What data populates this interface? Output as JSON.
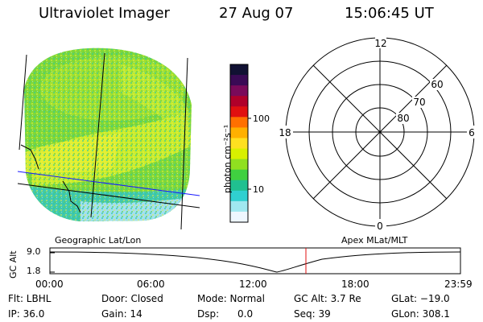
{
  "header": {
    "instrument": "Ultraviolet Imager",
    "date": "27 Aug 07",
    "time": "15:06:45 UT"
  },
  "colorbar": {
    "unit_label": "photon cm⁻²s⁻¹",
    "ticks": [
      "100",
      "10"
    ],
    "colors": [
      "#111133",
      "#3a0a55",
      "#7a0a5a",
      "#b0002a",
      "#e01010",
      "#ff7000",
      "#ffb000",
      "#ffe020",
      "#d8f000",
      "#90e020",
      "#40d040",
      "#20c090",
      "#30d0d0",
      "#a0e8f0",
      "#eef6ff"
    ]
  },
  "polar_plot": {
    "mlt_labels": {
      "top": "12",
      "right": "6",
      "bottom": "0",
      "left": "18"
    },
    "lat_labels": [
      "60",
      "70",
      "80"
    ]
  },
  "map_labels": {
    "left": "Geographic Lat/Lon",
    "right": "Apex MLat/MLT"
  },
  "altitude_plot": {
    "axis_label": "GC Alt",
    "y_ticks": [
      "9.0",
      "1.8"
    ],
    "x_ticks": [
      "00:00",
      "06:00",
      "12:00",
      "18:00",
      "23:59"
    ]
  },
  "info": {
    "filter": "Flt: LBHL",
    "ip": "IP: 36.0",
    "door": "Door: Closed",
    "gain": "Gain: 14",
    "mode": "Mode: Normal",
    "dsp": "Dsp:      0.0",
    "gc_alt": "GC Alt: 3.7 Re",
    "seq": "Seq: 39",
    "glat": "GLat: −19.0",
    "glon": "GLon: 308.1"
  }
}
